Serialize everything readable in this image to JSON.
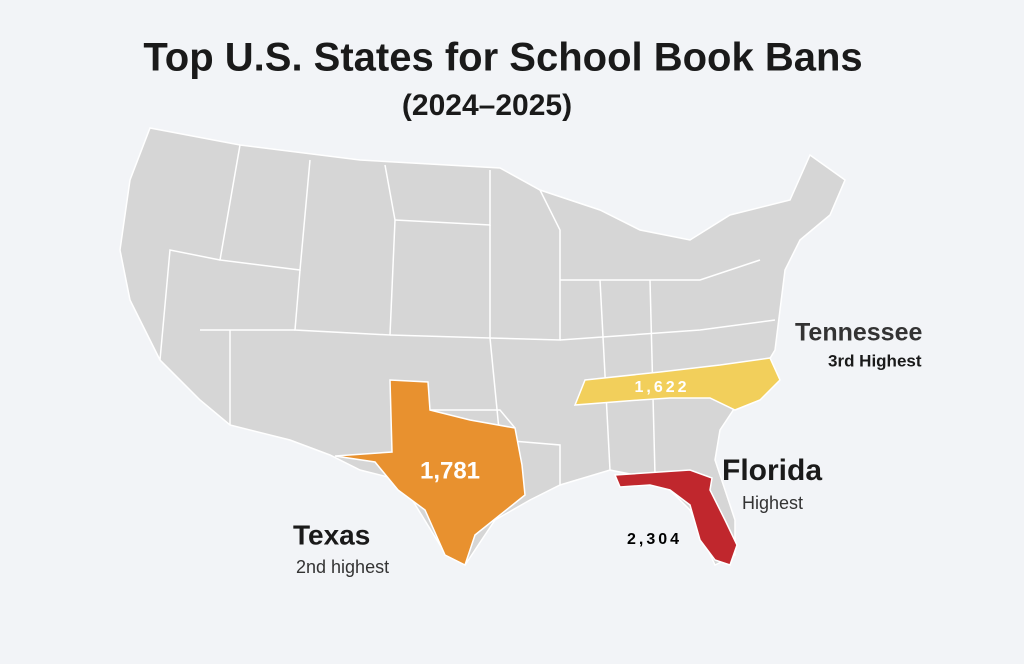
{
  "header": {
    "title": "Top U.S. States for School Book Bans",
    "subtitle": "(2024–2025)"
  },
  "states": [
    {
      "name": "Florida",
      "rank": "Highest",
      "count": "2,304",
      "color": "#c0272d"
    },
    {
      "name": "Texas",
      "rank": "2nd highest",
      "count": "1,781",
      "color": "#e8912f"
    },
    {
      "name": "Tennessee",
      "rank": "3rd Highest",
      "count": "1,622",
      "color": "#f2cf5b"
    }
  ]
}
